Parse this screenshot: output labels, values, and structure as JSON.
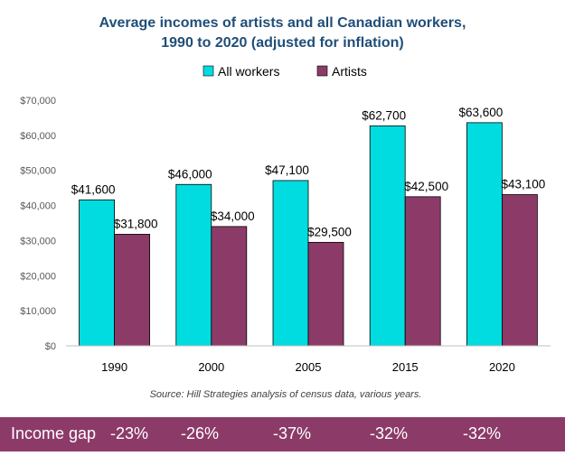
{
  "chart_data": {
    "type": "bar",
    "title_lines": [
      "Average incomes of artists and all Canadian workers,",
      "1990 to 2020 (adjusted for inflation)"
    ],
    "categories": [
      "1990",
      "2000",
      "2005",
      "2015",
      "2020"
    ],
    "series": [
      {
        "name": "All workers",
        "color": "#00dce0",
        "values": [
          41600,
          46000,
          47100,
          62700,
          63600
        ],
        "labels": [
          "$41,600",
          "$46,000",
          "$47,100",
          "$62,700",
          "$63,600"
        ]
      },
      {
        "name": "Artists",
        "color": "#8c3b69",
        "values": [
          31800,
          34000,
          29500,
          42500,
          43100
        ],
        "labels": [
          "$31,800",
          "$34,000",
          "$29,500",
          "$42,500",
          "$43,100"
        ]
      }
    ],
    "ylim": [
      0,
      70000
    ],
    "yticks": [
      0,
      10000,
      20000,
      30000,
      40000,
      50000,
      60000,
      70000
    ],
    "ytick_labels": [
      "$0",
      "$10,000",
      "$20,000",
      "$30,000",
      "$40,000",
      "$50,000",
      "$60,000",
      "$70,000"
    ],
    "grid": false,
    "legend_position": "top-center",
    "source": "Source: Hill Strategies analysis of census data, various years."
  },
  "income_gap": {
    "label": "Income gap",
    "values": [
      "-23%",
      "-26%",
      "-37%",
      "-32%",
      "-32%"
    ]
  }
}
